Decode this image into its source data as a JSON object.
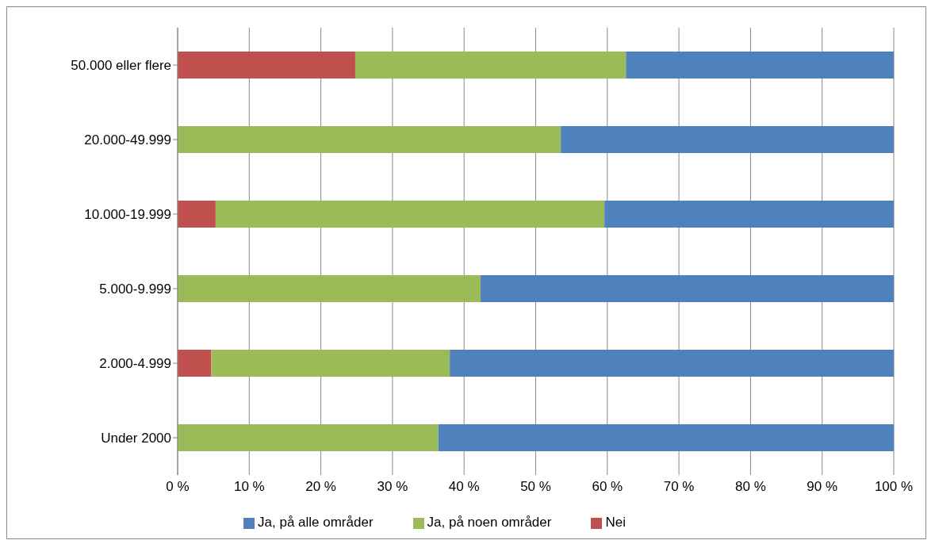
{
  "chart_data": {
    "type": "bar",
    "orientation": "horizontal",
    "stacked": true,
    "categories": [
      "50.000 eller flere",
      "20.000-49.999",
      "10.000-19.999",
      "5.000-9.999",
      "2.000-4.999",
      "Under 2000"
    ],
    "series": [
      {
        "name": "Nei",
        "color": "#c0504d",
        "values": [
          24.8,
          0,
          5.3,
          0,
          4.7,
          0
        ]
      },
      {
        "name": "Ja, på noen områder",
        "color": "#9bbb59",
        "values": [
          37.8,
          53.5,
          54.3,
          42.3,
          33.3,
          36.4
        ]
      },
      {
        "name": "Ja, på alle områder",
        "color": "#4f81bd",
        "values": [
          37.4,
          46.5,
          40.4,
          57.7,
          62.0,
          63.6
        ]
      }
    ],
    "xlim": [
      0,
      100
    ],
    "xticks": [
      {
        "value": 0,
        "label": "0 %"
      },
      {
        "value": 10,
        "label": "10 %"
      },
      {
        "value": 20,
        "label": "20 %"
      },
      {
        "value": 30,
        "label": "30 %"
      },
      {
        "value": 40,
        "label": "40 %"
      },
      {
        "value": 50,
        "label": "50 %"
      },
      {
        "value": 60,
        "label": "60 %"
      },
      {
        "value": 70,
        "label": "70 %"
      },
      {
        "value": 80,
        "label": "80 %"
      },
      {
        "value": 90,
        "label": "90 %"
      },
      {
        "value": 100,
        "label": "100 %"
      }
    ],
    "grid": "x",
    "legend": "bottom"
  }
}
